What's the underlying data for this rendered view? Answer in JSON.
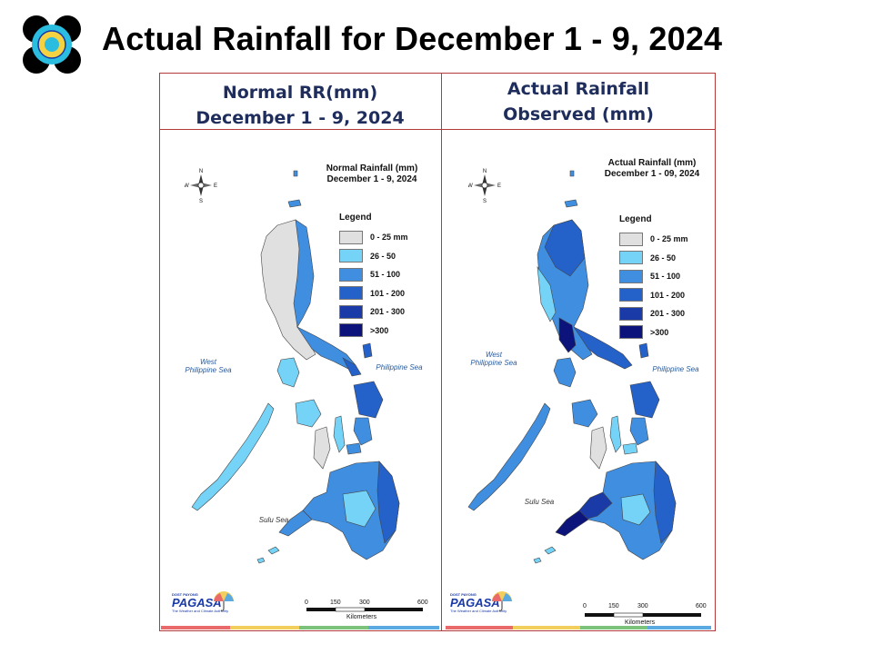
{
  "slide": {
    "title": "Actual Rainfall for December 1 - 9, 2024"
  },
  "panels": [
    {
      "header": [
        "Normal RR(mm)",
        "December 1 - 9, 2024"
      ],
      "map_title": [
        "Normal Rainfall (mm)",
        "December 1 - 9, 2024"
      ]
    },
    {
      "header": [
        "Actual Rainfall",
        "Observed (mm)"
      ],
      "map_title": [
        "Actual Rainfall (mm)",
        "December 1 - 09, 2024"
      ]
    }
  ],
  "legend": {
    "title": "Legend",
    "items": [
      {
        "label": "0 - 25 mm",
        "color": "#e0e0e0"
      },
      {
        "label": "26 - 50",
        "color": "#74d3f7"
      },
      {
        "label": "51 - 100",
        "color": "#3f8ee0"
      },
      {
        "label": "101 - 200",
        "color": "#2461c9"
      },
      {
        "label": "201 - 300",
        "color": "#1a3aa8"
      },
      {
        "label": ">300",
        "color": "#0c137a"
      }
    ]
  },
  "seas": {
    "west": [
      "West",
      "Philippine Sea"
    ],
    "east": "Philippine Sea",
    "sulu": "Sulu Sea"
  },
  "compass": {
    "n": "N",
    "s": "S",
    "e": "E",
    "w": "W"
  },
  "scale": {
    "ticks": [
      "0",
      "150",
      "300",
      "600"
    ],
    "unit": "Kilometers"
  },
  "brand": {
    "name": "PAGASA",
    "small": "DOST PAYONG",
    "tagline": "The Weather and Climate Authority"
  },
  "colors": {
    "frame": "#b23a3a",
    "header_text": "#1f2d5c",
    "land_gray": "#e0e0e0",
    "stripes": [
      "#e86a6a",
      "#f2cf5c",
      "#7cc27a",
      "#5aa9e0"
    ]
  }
}
